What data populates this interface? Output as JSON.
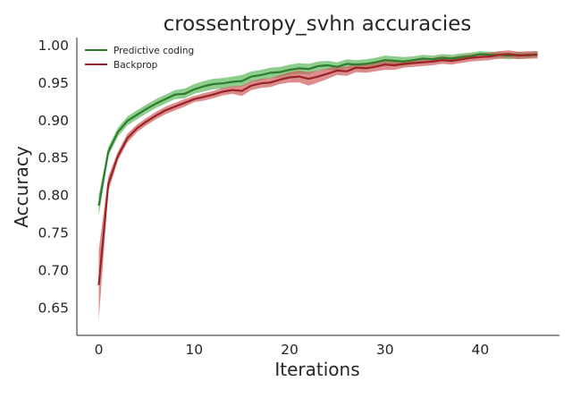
{
  "chart_data": {
    "type": "line",
    "title": "crossentropy_svhn accuracies",
    "xlabel": "Iterations",
    "ylabel": "Accuracy",
    "xlim": [
      -2.3,
      48.3
    ],
    "ylim": [
      0.613,
      1.01
    ],
    "xticks": [
      "0",
      "10",
      "20",
      "30",
      "40"
    ],
    "yticks": [
      "0.65",
      "0.70",
      "0.75",
      "0.80",
      "0.85",
      "0.90",
      "0.95",
      "1.00"
    ],
    "grid": false,
    "legend_position": "top-left",
    "x": [
      0,
      1,
      2,
      3,
      4,
      5,
      6,
      7,
      8,
      9,
      10,
      11,
      12,
      13,
      14,
      15,
      16,
      17,
      18,
      19,
      20,
      21,
      22,
      23,
      24,
      25,
      26,
      27,
      28,
      29,
      30,
      31,
      32,
      33,
      34,
      35,
      36,
      37,
      38,
      39,
      40,
      41,
      42,
      43,
      44,
      45,
      46
    ],
    "series": [
      {
        "name": "Predictive coding",
        "color": "#2e7d2e",
        "band_color": "#5cb85c",
        "values": [
          0.786,
          0.858,
          0.884,
          0.899,
          0.907,
          0.915,
          0.922,
          0.928,
          0.934,
          0.935,
          0.941,
          0.945,
          0.948,
          0.949,
          0.951,
          0.952,
          0.958,
          0.96,
          0.963,
          0.964,
          0.967,
          0.969,
          0.968,
          0.972,
          0.973,
          0.971,
          0.975,
          0.974,
          0.975,
          0.977,
          0.98,
          0.979,
          0.978,
          0.98,
          0.982,
          0.981,
          0.983,
          0.982,
          0.984,
          0.985,
          0.988,
          0.987,
          0.987,
          0.986,
          0.987,
          0.986,
          0.988
        ],
        "lower": [
          0.772,
          0.852,
          0.878,
          0.893,
          0.901,
          0.909,
          0.916,
          0.922,
          0.928,
          0.929,
          0.935,
          0.938,
          0.941,
          0.942,
          0.944,
          0.945,
          0.951,
          0.953,
          0.956,
          0.957,
          0.96,
          0.962,
          0.961,
          0.966,
          0.967,
          0.965,
          0.969,
          0.968,
          0.969,
          0.971,
          0.974,
          0.973,
          0.972,
          0.975,
          0.977,
          0.976,
          0.978,
          0.977,
          0.979,
          0.981,
          0.983,
          0.983,
          0.982,
          0.981,
          0.982,
          0.982,
          0.984
        ],
        "upper": [
          0.8,
          0.864,
          0.89,
          0.905,
          0.913,
          0.921,
          0.928,
          0.934,
          0.94,
          0.942,
          0.948,
          0.952,
          0.955,
          0.956,
          0.958,
          0.96,
          0.965,
          0.967,
          0.97,
          0.971,
          0.974,
          0.976,
          0.975,
          0.978,
          0.979,
          0.977,
          0.981,
          0.98,
          0.981,
          0.983,
          0.986,
          0.985,
          0.984,
          0.985,
          0.987,
          0.986,
          0.988,
          0.987,
          0.989,
          0.99,
          0.992,
          0.991,
          0.991,
          0.99,
          0.991,
          0.99,
          0.992
        ]
      },
      {
        "name": "Backprop",
        "color": "#9b2226",
        "band_color": "#cd5c5c",
        "values": [
          0.68,
          0.815,
          0.852,
          0.876,
          0.889,
          0.898,
          0.906,
          0.913,
          0.918,
          0.923,
          0.928,
          0.931,
          0.934,
          0.938,
          0.94,
          0.939,
          0.946,
          0.949,
          0.95,
          0.954,
          0.957,
          0.958,
          0.955,
          0.958,
          0.962,
          0.966,
          0.965,
          0.97,
          0.969,
          0.971,
          0.974,
          0.973,
          0.975,
          0.976,
          0.977,
          0.978,
          0.98,
          0.979,
          0.981,
          0.983,
          0.984,
          0.985,
          0.987,
          0.988,
          0.986,
          0.987,
          0.987
        ],
        "lower": [
          0.633,
          0.805,
          0.846,
          0.87,
          0.884,
          0.893,
          0.901,
          0.908,
          0.913,
          0.918,
          0.924,
          0.926,
          0.929,
          0.933,
          0.935,
          0.932,
          0.94,
          0.943,
          0.944,
          0.948,
          0.95,
          0.95,
          0.946,
          0.95,
          0.955,
          0.96,
          0.959,
          0.964,
          0.963,
          0.965,
          0.967,
          0.967,
          0.97,
          0.971,
          0.972,
          0.973,
          0.975,
          0.974,
          0.976,
          0.978,
          0.979,
          0.98,
          0.982,
          0.983,
          0.981,
          0.982,
          0.982
        ],
        "upper": [
          0.727,
          0.825,
          0.858,
          0.882,
          0.894,
          0.903,
          0.911,
          0.918,
          0.923,
          0.928,
          0.932,
          0.936,
          0.939,
          0.943,
          0.945,
          0.946,
          0.952,
          0.955,
          0.956,
          0.96,
          0.964,
          0.966,
          0.964,
          0.966,
          0.969,
          0.972,
          0.971,
          0.976,
          0.975,
          0.977,
          0.981,
          0.979,
          0.98,
          0.981,
          0.982,
          0.983,
          0.985,
          0.984,
          0.986,
          0.988,
          0.989,
          0.99,
          0.992,
          0.993,
          0.991,
          0.992,
          0.992
        ]
      }
    ]
  }
}
